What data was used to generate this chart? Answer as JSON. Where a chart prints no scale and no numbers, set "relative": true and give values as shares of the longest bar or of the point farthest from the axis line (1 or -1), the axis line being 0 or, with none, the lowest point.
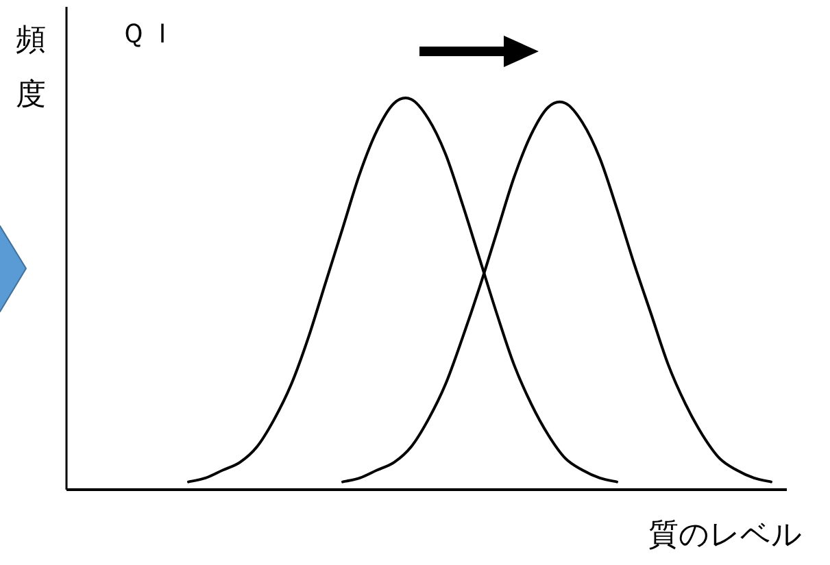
{
  "chart_data": {
    "type": "line",
    "relative": true,
    "title": "ＱＩ",
    "ylabel": "頻度",
    "xlabel": "質のレベル",
    "categories": [
      null,
      null,
      null,
      null,
      null,
      null,
      null,
      null,
      null,
      null,
      null,
      null,
      null,
      null,
      null,
      null,
      null,
      null,
      null,
      null,
      null,
      null,
      null,
      null,
      null,
      null,
      null,
      null,
      null,
      null,
      null,
      null,
      null,
      null,
      null,
      null,
      null,
      null,
      null,
      null,
      null,
      null
    ],
    "series": [
      {
        "color": "#000000",
        "values": [
          null,
          null,
          null,
          null,
          null,
          null,
          null,
          0.02,
          0.03,
          0.05,
          0.07,
          0.11,
          0.18,
          0.27,
          0.39,
          0.53,
          0.67,
          0.81,
          0.92,
          0.99,
          1.0,
          0.95,
          0.86,
          0.73,
          0.59,
          0.45,
          0.32,
          0.22,
          0.14,
          0.08,
          0.05,
          0.03,
          0.02,
          null,
          null,
          null,
          null,
          null,
          null,
          null,
          null,
          null
        ]
      },
      {
        "color": "#000000",
        "values": [
          null,
          null,
          null,
          null,
          null,
          null,
          null,
          null,
          null,
          null,
          null,
          null,
          null,
          null,
          null,
          null,
          0.02,
          0.03,
          0.05,
          0.07,
          0.11,
          0.18,
          0.27,
          0.39,
          0.52,
          0.66,
          0.8,
          0.91,
          0.98,
          0.99,
          0.94,
          0.85,
          0.72,
          0.58,
          0.45,
          0.32,
          0.22,
          0.14,
          0.08,
          0.05,
          0.03,
          0.02
        ]
      }
    ],
    "marker": "none",
    "line_style": "solid"
  }
}
